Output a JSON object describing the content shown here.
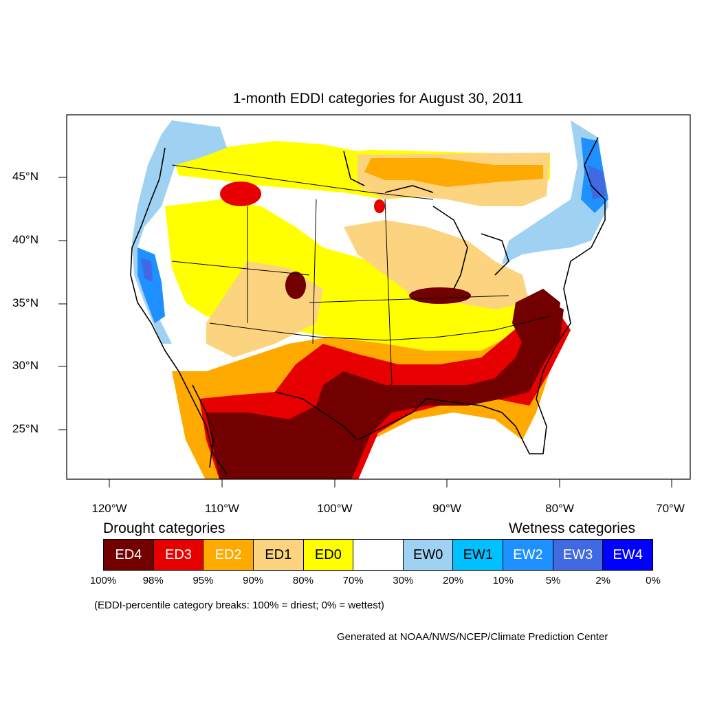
{
  "title": "1-month EDDI categories for August 30, 2011",
  "longitude_labels": [
    "120°W",
    "110°W",
    "100°W",
    "90°W",
    "80°W",
    "70°W"
  ],
  "latitude_labels": [
    "45°N",
    "40°N",
    "35°N",
    "30°N",
    "25°N"
  ],
  "legend": {
    "drought_heading": "Drought categories",
    "wetness_heading": "Wetness categories",
    "categories": [
      {
        "label": "ED4",
        "color": "#730000",
        "text_color": "#ffffff"
      },
      {
        "label": "ED3",
        "color": "#e60000",
        "text_color": "#ffffff"
      },
      {
        "label": "ED2",
        "color": "#ffaa00",
        "text_color": "#ffffff"
      },
      {
        "label": "ED1",
        "color": "#fcd37f",
        "text_color": "#000000"
      },
      {
        "label": "ED0",
        "color": "#ffff00",
        "text_color": "#000000"
      },
      {
        "label": "",
        "color": "#ffffff",
        "text_color": "#000000"
      },
      {
        "label": "EW0",
        "color": "#9fd1f2",
        "text_color": "#000000"
      },
      {
        "label": "EW1",
        "color": "#00c0ff",
        "text_color": "#000000"
      },
      {
        "label": "EW2",
        "color": "#1e90ff",
        "text_color": "#ffffff"
      },
      {
        "label": "EW3",
        "color": "#4169e1",
        "text_color": "#ffffff"
      },
      {
        "label": "EW4",
        "color": "#0000ff",
        "text_color": "#ffffff"
      }
    ],
    "percentile_breaks": [
      "100%",
      "98%",
      "95%",
      "90%",
      "80%",
      "70%",
      "30%",
      "20%",
      "10%",
      "5%",
      "2%",
      "0%"
    ]
  },
  "note": "(EDDI-percentile category breaks: 100% = driest; 0% = wettest)",
  "footer": "Generated at NOAA/NWS/NCEP/Climate Prediction Center"
}
